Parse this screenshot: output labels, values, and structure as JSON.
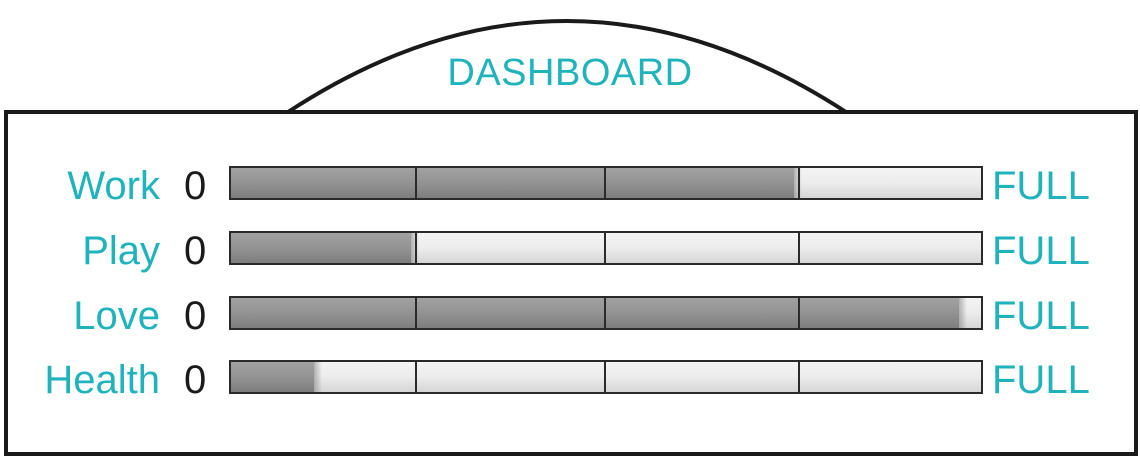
{
  "title": "DASHBOARD",
  "colors": {
    "label": "#1fb3bd",
    "outline": "#1a1a1a",
    "fill": "#8f8f8f",
    "track": "#ececec"
  },
  "meters": [
    {
      "label": "Work",
      "min_label": "0",
      "max_label": "FULL",
      "level": 0.75
    },
    {
      "label": "Play",
      "min_label": "0",
      "max_label": "FULL",
      "level": 0.24
    },
    {
      "label": "Love",
      "min_label": "0",
      "max_label": "FULL",
      "level": 0.97
    },
    {
      "label": "Health",
      "min_label": "0",
      "max_label": "FULL",
      "level": 0.11
    }
  ]
}
